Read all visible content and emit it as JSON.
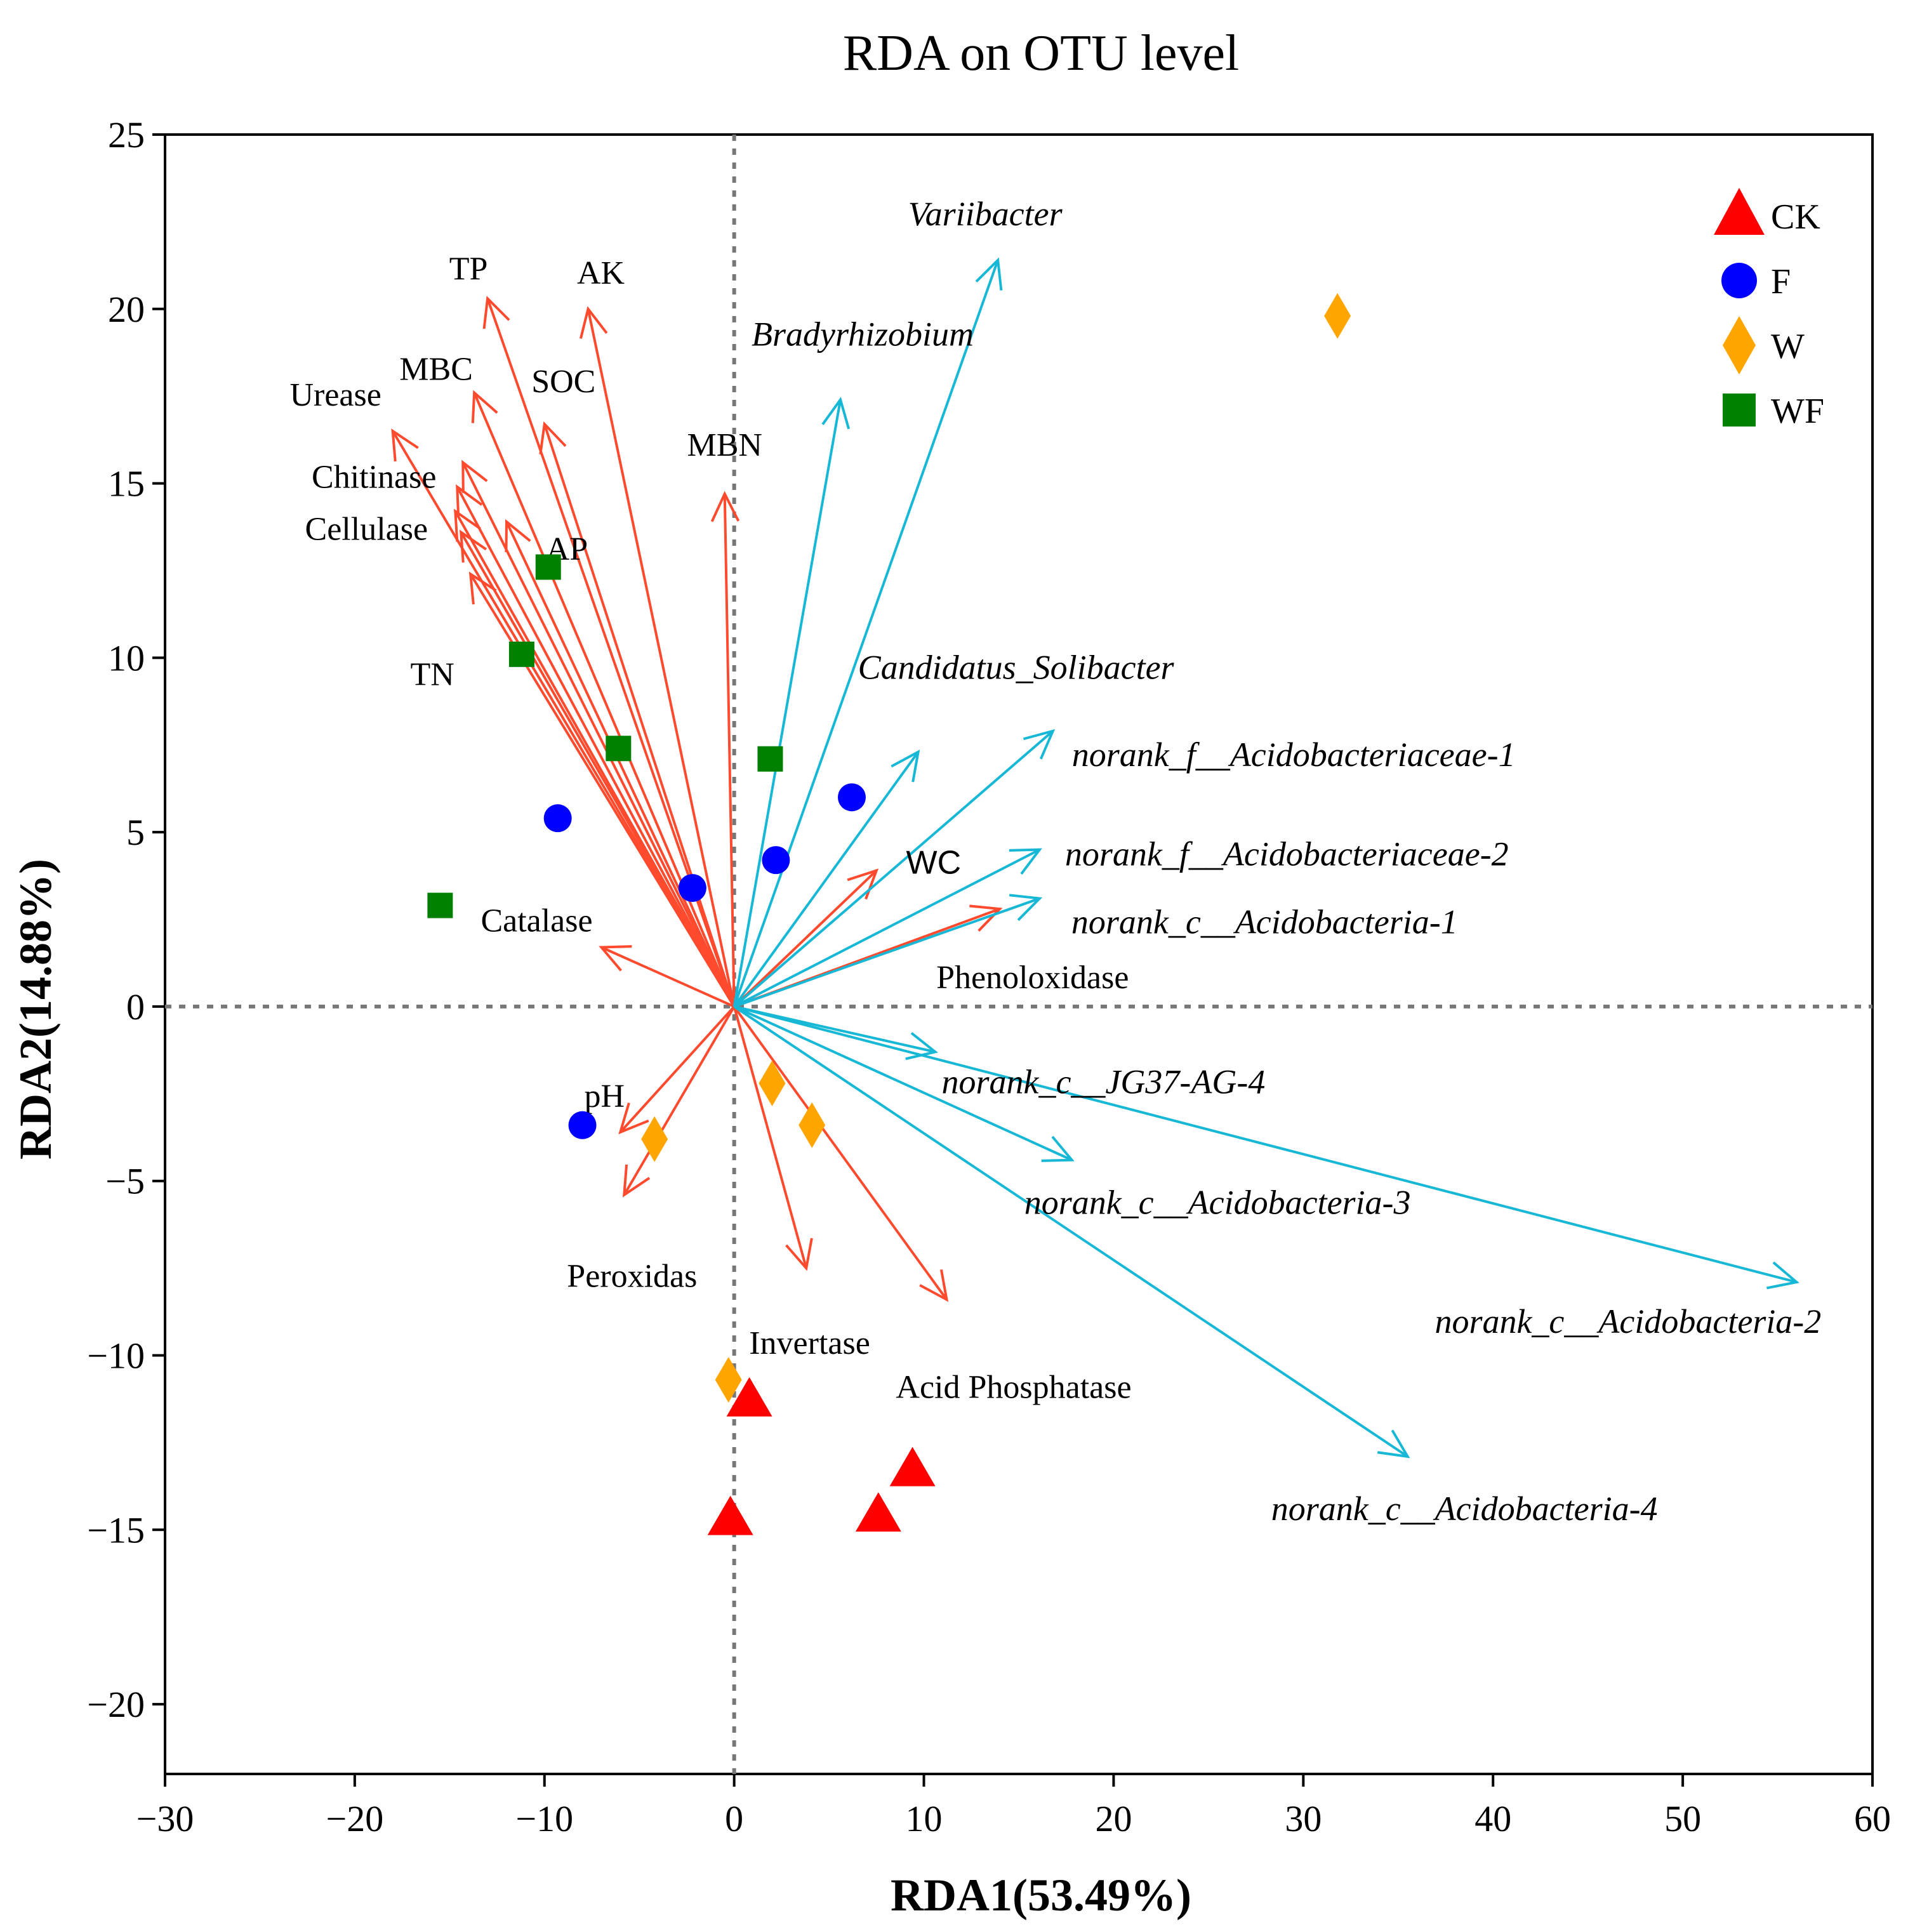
{
  "chart_data": {
    "type": "scatter",
    "title": "RDA on OTU level",
    "xlabel": "RDA1(53.49%)",
    "ylabel": "RDA2(14.88%)",
    "xlim": [
      -30,
      60
    ],
    "ylim": [
      -22,
      25
    ],
    "xticks": [
      -30,
      -20,
      -10,
      0,
      10,
      20,
      30,
      40,
      50,
      60
    ],
    "yticks": [
      -20,
      -15,
      -10,
      -5,
      0,
      5,
      10,
      15,
      20,
      25
    ],
    "xtick_labels": [
      "−30",
      "−20",
      "−10",
      "0",
      "10",
      "20",
      "30",
      "40",
      "50",
      "60"
    ],
    "ytick_labels": [
      "−20",
      "−15",
      "−10",
      "−5",
      "0",
      "5",
      "10",
      "15",
      "20",
      "25"
    ],
    "grid": false,
    "reference_lines": {
      "x": 0,
      "y": 0,
      "style": "dotted"
    },
    "legend": {
      "position": "top-right",
      "entries": [
        {
          "name": "CK",
          "marker": "triangle",
          "color": "#FF0000"
        },
        {
          "name": "F",
          "marker": "circle",
          "color": "#0000FF"
        },
        {
          "name": "W",
          "marker": "diamond",
          "color": "#FFA500"
        },
        {
          "name": "WF",
          "marker": "square",
          "color": "#008000"
        }
      ]
    },
    "series": [
      {
        "name": "CK",
        "marker": "triangle",
        "color": "#FF0000",
        "points": [
          [
            0.8,
            -11.3
          ],
          [
            -0.2,
            -14.7
          ],
          [
            7.6,
            -14.6
          ],
          [
            9.4,
            -13.3
          ]
        ]
      },
      {
        "name": "F",
        "marker": "circle",
        "color": "#0000FF",
        "points": [
          [
            -9.3,
            5.4
          ],
          [
            -2.2,
            3.4
          ],
          [
            2.2,
            4.2
          ],
          [
            6.2,
            6.0
          ],
          [
            -8.0,
            -3.4
          ]
        ]
      },
      {
        "name": "W",
        "marker": "diamond",
        "color": "#FFA500",
        "points": [
          [
            31.8,
            19.8
          ],
          [
            2.0,
            -2.2
          ],
          [
            4.1,
            -3.4
          ],
          [
            -4.2,
            -3.8
          ],
          [
            -0.3,
            -10.7
          ]
        ]
      },
      {
        "name": "WF",
        "marker": "square",
        "color": "#008000",
        "points": [
          [
            -9.8,
            12.6
          ],
          [
            -11.2,
            10.1
          ],
          [
            -6.1,
            7.4
          ],
          [
            1.9,
            7.1
          ],
          [
            -15.5,
            2.9
          ]
        ]
      }
    ],
    "env_arrow_color": "#FF4A2E",
    "env_arrows": [
      {
        "label": "TP",
        "x": -13.0,
        "y": 20.3
      },
      {
        "label": "AK",
        "x": -7.7,
        "y": 20.0
      },
      {
        "label": "MBC",
        "x": -13.7,
        "y": 17.6
      },
      {
        "label": "SOC",
        "x": -10.0,
        "y": 16.7
      },
      {
        "label": "Urease",
        "x": -18.0,
        "y": 16.5
      },
      {
        "label": "MBN",
        "x": -0.5,
        "y": 14.7
      },
      {
        "label": "Chitinase",
        "x": -14.3,
        "y": 15.6
      },
      {
        "label": "",
        "x": -14.6,
        "y": 14.9
      },
      {
        "label": "Cellulase",
        "x": -14.7,
        "y": 14.2
      },
      {
        "label": "",
        "x": -14.4,
        "y": 13.6
      },
      {
        "label": "AP",
        "x": -12.0,
        "y": 13.9
      },
      {
        "label": "TN",
        "x": -13.9,
        "y": 12.4
      },
      {
        "label": "WC",
        "x": 7.5,
        "y": 3.9
      },
      {
        "label": "Phenoloxidase",
        "x": 14.0,
        "y": 2.8
      },
      {
        "label": "Catalase",
        "x": -7.0,
        "y": 1.7
      },
      {
        "label": "pH",
        "x": -6.0,
        "y": -3.6
      },
      {
        "label": "Peroxidas",
        "x": -5.8,
        "y": -5.4
      },
      {
        "label": "Invertase",
        "x": 3.8,
        "y": -7.5
      },
      {
        "label": "Acid Phosphatase",
        "x": 11.2,
        "y": -8.4
      }
    ],
    "taxa_arrow_color": "#17B7D6",
    "taxa_arrows": [
      {
        "label": "Variibacter",
        "x": 13.9,
        "y": 21.4
      },
      {
        "label": "Bradyrhizobium",
        "x": 5.6,
        "y": 17.4
      },
      {
        "label": "Candidatus_Solibacter",
        "x": 9.7,
        "y": 7.3
      },
      {
        "label": "norank_f__Acidobacteriaceae-1",
        "x": 16.8,
        "y": 7.9
      },
      {
        "label": "norank_f__Acidobacteriaceae-2",
        "x": 16.1,
        "y": 4.5
      },
      {
        "label": "norank_c__Acidobacteria-1",
        "x": 16.1,
        "y": 3.1
      },
      {
        "label": "norank_c__JG37-AG-4",
        "x": 10.6,
        "y": -1.3
      },
      {
        "label": "norank_c__Acidobacteria-3",
        "x": 17.8,
        "y": -4.4
      },
      {
        "label": "norank_c__Acidobacteria-2",
        "x": 56.0,
        "y": -7.9
      },
      {
        "label": "norank_c__Acidobacteria-4",
        "x": 35.5,
        "y": -12.9
      }
    ]
  }
}
